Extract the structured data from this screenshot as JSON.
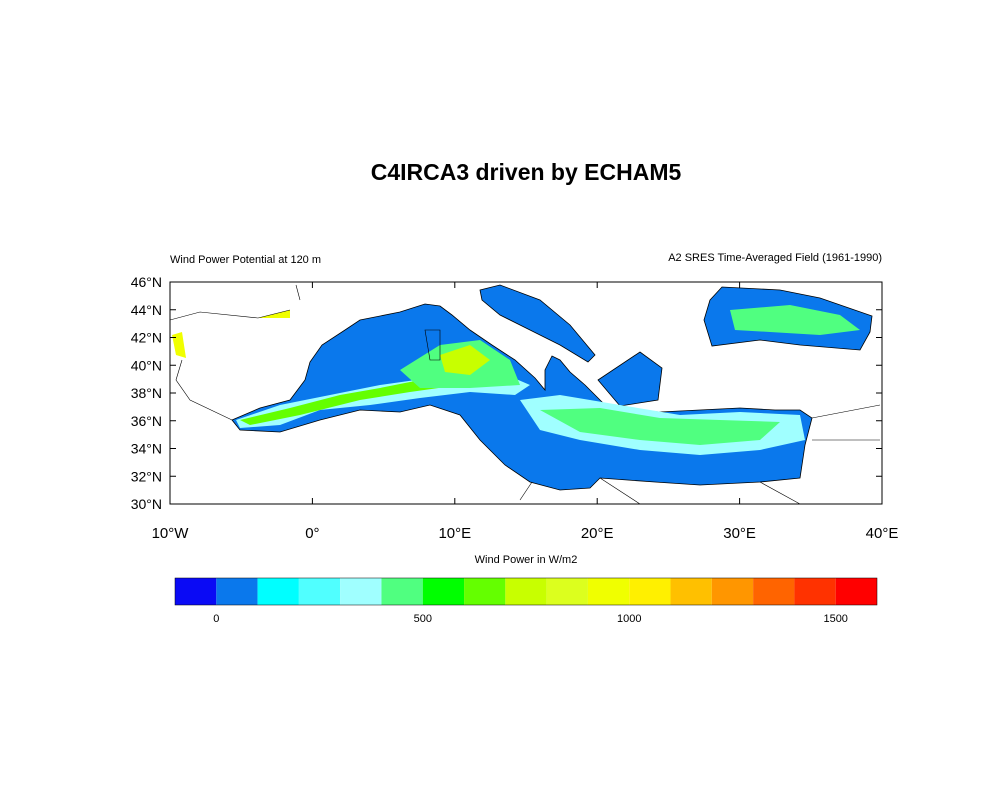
{
  "title": "C4IRCA3 driven by ECHAM5",
  "left_string": "Wind Power Potential at 120 m",
  "right_string": "A2 SRES Time-Averaged Field (1961-1990)",
  "map": {
    "xlim": [
      -10,
      40
    ],
    "ylim": [
      30,
      46
    ],
    "xticks": [
      {
        "value": -10,
        "label": "10°W"
      },
      {
        "value": 0,
        "label": "0°"
      },
      {
        "value": 10,
        "label": "10°E"
      },
      {
        "value": 20,
        "label": "20°E"
      },
      {
        "value": 30,
        "label": "30°E"
      },
      {
        "value": 40,
        "label": "40°E"
      }
    ],
    "yticks": [
      {
        "value": 30,
        "label": "30°N"
      },
      {
        "value": 32,
        "label": "32°N"
      },
      {
        "value": 34,
        "label": "34°N"
      },
      {
        "value": 36,
        "label": "36°N"
      },
      {
        "value": 38,
        "label": "38°N"
      },
      {
        "value": 40,
        "label": "40°N"
      },
      {
        "value": 42,
        "label": "42°N"
      },
      {
        "value": 44,
        "label": "44°N"
      },
      {
        "value": 46,
        "label": "46°N"
      }
    ]
  },
  "colorbar": {
    "title": "Wind Power in W/m2",
    "range": [
      -100,
      1600
    ],
    "ticks": [
      0,
      500,
      1000,
      1500
    ],
    "colors": [
      "#0a0af5",
      "#0a78ec",
      "#00ffff",
      "#50ffff",
      "#a0ffff",
      "#50ff80",
      "#00ff00",
      "#64ff00",
      "#c8ff00",
      "#dcff1e",
      "#f0ff00",
      "#fff000",
      "#ffc000",
      "#ff9600",
      "#ff6400",
      "#ff3200",
      "#ff0000"
    ]
  }
}
